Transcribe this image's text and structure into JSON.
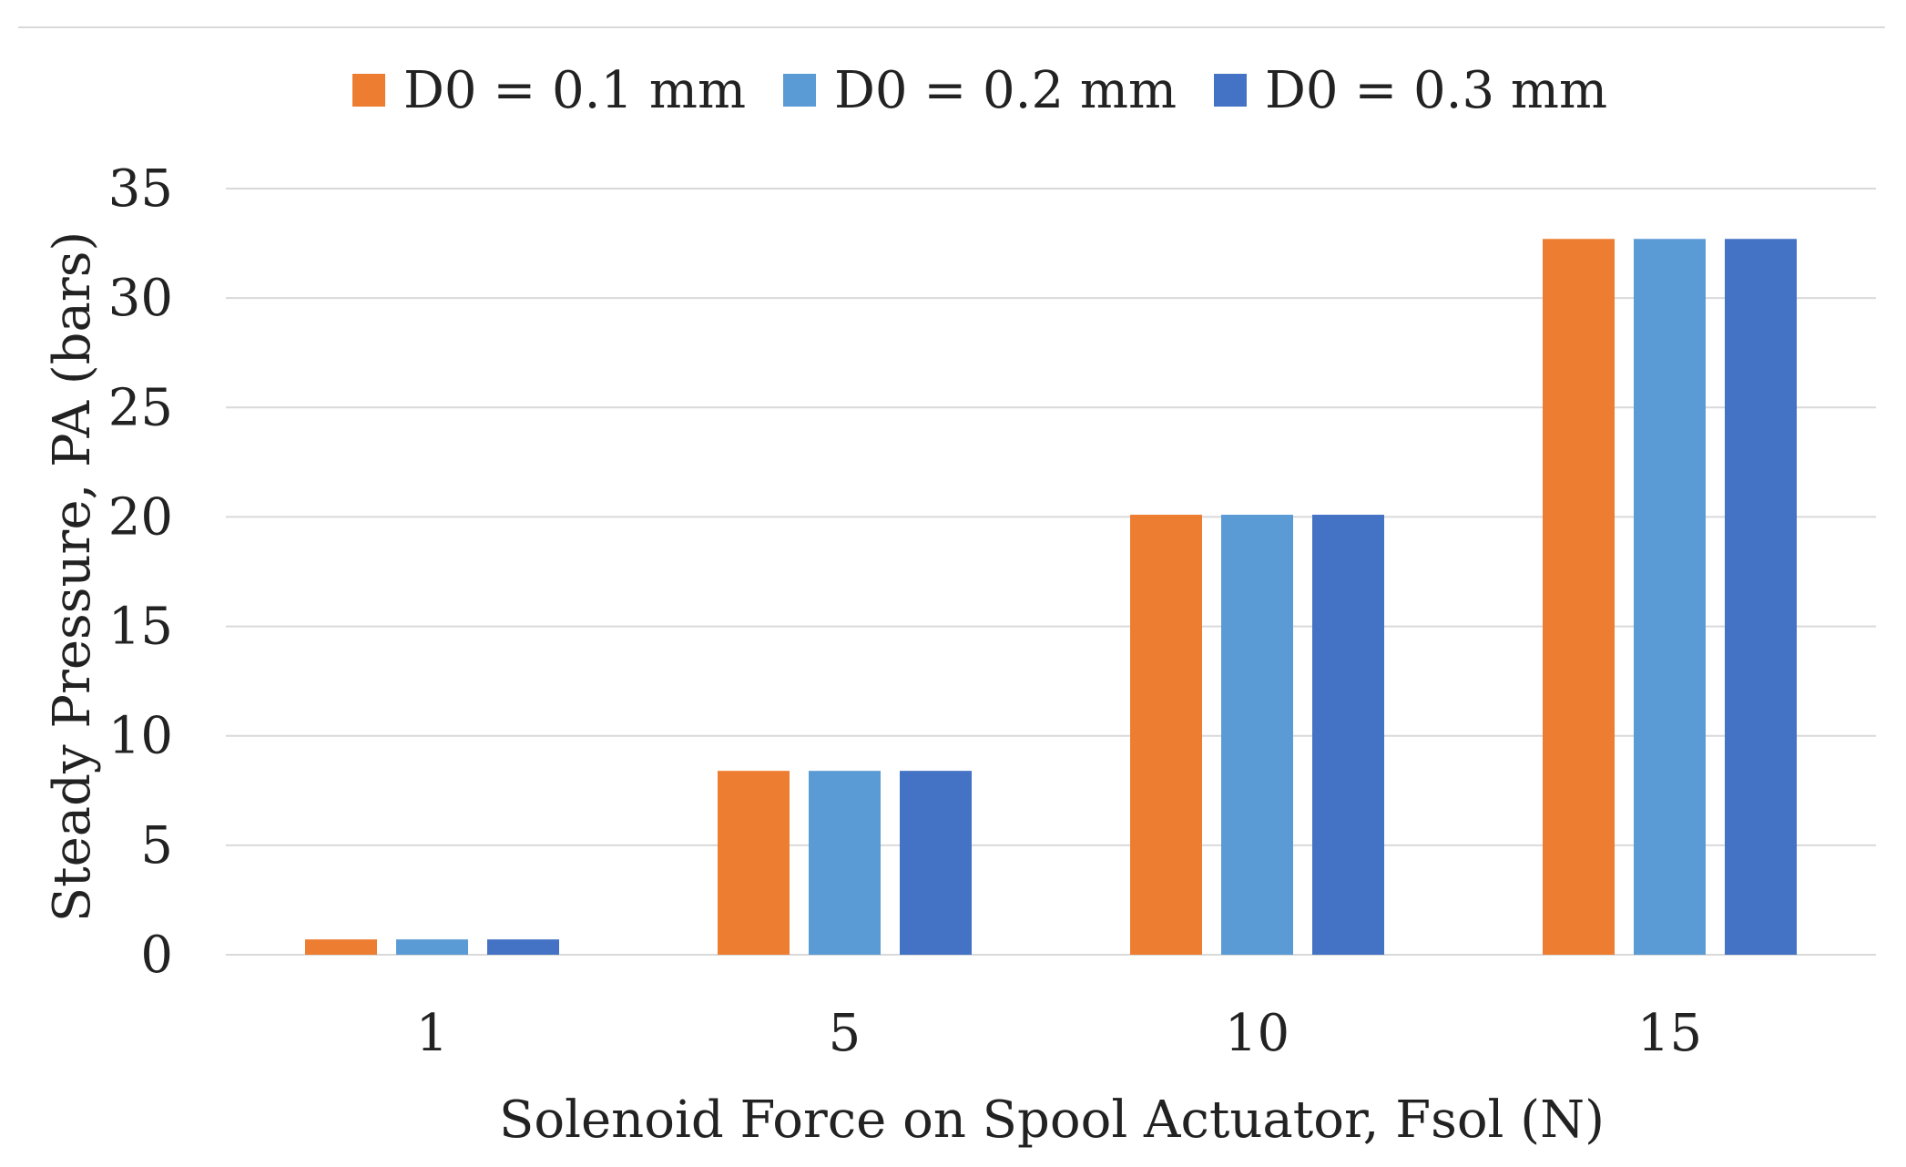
{
  "chart_data": {
    "type": "bar",
    "title": "",
    "xlabel": "Solenoid Force on Spool Actuator, Fsol (N)",
    "ylabel": "Steady Pressure, PA (bars)",
    "categories": [
      "1",
      "5",
      "10",
      "15"
    ],
    "series": [
      {
        "name": "D0 = 0.1 mm",
        "color": "#ED7D31",
        "values": [
          0.7,
          8.4,
          20.1,
          32.7
        ]
      },
      {
        "name": "D0 = 0.2 mm",
        "color": "#5B9BD5",
        "values": [
          0.7,
          8.4,
          20.1,
          32.7
        ]
      },
      {
        "name": "D0 = 0.3 mm",
        "color": "#4472C4",
        "values": [
          0.7,
          8.4,
          20.1,
          32.7
        ]
      }
    ],
    "ylim": [
      0,
      35
    ],
    "yticks": [
      0,
      5,
      10,
      15,
      20,
      25,
      30,
      35
    ],
    "grid": true,
    "legend_position": "top"
  }
}
